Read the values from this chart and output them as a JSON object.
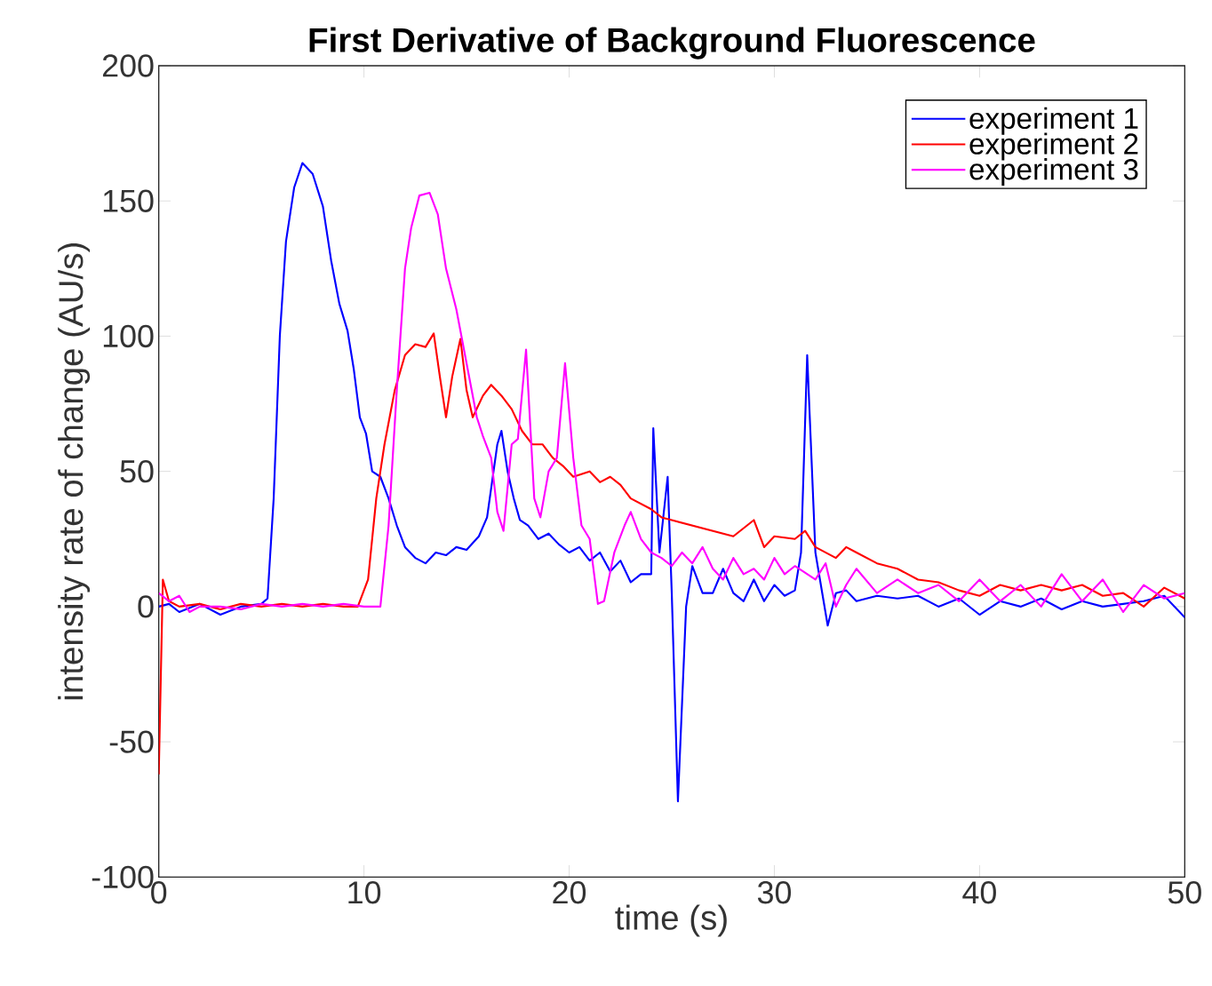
{
  "chart_data": {
    "type": "line",
    "title": "First Derivative of Background Fluorescence",
    "xlabel": "time (s)",
    "ylabel": "intensity rate of change (AU/s)",
    "xlim": [
      0,
      50
    ],
    "ylim": [
      -100,
      200
    ],
    "xticks": [
      0,
      10,
      20,
      30,
      40,
      50
    ],
    "yticks": [
      -100,
      -50,
      0,
      50,
      100,
      150,
      200
    ],
    "legend": "top right",
    "grid": false,
    "line_style": "solid",
    "marker": "none",
    "series": [
      {
        "name": "experiment 1",
        "color": "#0000ff",
        "x": [
          0,
          0.5,
          1,
          2,
          3,
          4,
          5,
          5.3,
          5.6,
          5.9,
          6.2,
          6.6,
          7,
          7.5,
          8,
          8.4,
          8.8,
          9.2,
          9.5,
          9.8,
          10.1,
          10.4,
          10.8,
          11.2,
          11.6,
          12,
          12.5,
          13,
          13.5,
          14,
          14.5,
          15,
          15.6,
          16,
          16.5,
          16.7,
          17,
          17.3,
          17.6,
          18,
          18.5,
          19,
          19.5,
          20,
          20.5,
          21,
          21.5,
          22,
          22.5,
          23,
          23.5,
          24,
          24.1,
          24.4,
          24.8,
          25,
          25.3,
          25.7,
          26,
          26.5,
          27,
          27.5,
          28,
          28.5,
          29,
          29.5,
          30,
          30.5,
          31,
          31.3,
          31.6,
          32,
          32.6,
          33,
          33.5,
          34,
          35,
          36,
          37,
          38,
          39,
          40,
          41,
          42,
          43,
          44,
          45,
          46,
          47,
          48,
          49,
          50
        ],
        "values": [
          0,
          1,
          -2,
          1,
          -3,
          0,
          1,
          3,
          40,
          100,
          135,
          155,
          164,
          160,
          148,
          128,
          112,
          102,
          88,
          70,
          64,
          50,
          48,
          40,
          30,
          22,
          18,
          16,
          20,
          19,
          22,
          21,
          26,
          33,
          60,
          65,
          50,
          40,
          32,
          30,
          25,
          27,
          23,
          20,
          22,
          17,
          20,
          13,
          17,
          9,
          12,
          12,
          66,
          20,
          48,
          5,
          -72,
          0,
          15,
          5,
          5,
          14,
          5,
          2,
          10,
          2,
          8,
          4,
          6,
          20,
          93,
          20,
          -7,
          5,
          6,
          2,
          4,
          3,
          4,
          0,
          3,
          -3,
          2,
          0,
          3,
          -1,
          2,
          0,
          1,
          2,
          4,
          -4
        ]
      },
      {
        "name": "experiment 2",
        "color": "#ff0000",
        "x": [
          0,
          0.2,
          0.5,
          1,
          2,
          3,
          4,
          5,
          6,
          7,
          8,
          9,
          9.7,
          10.2,
          10.6,
          11,
          11.5,
          12,
          12.5,
          13,
          13.4,
          13.7,
          14,
          14.3,
          14.7,
          15,
          15.3,
          15.8,
          16.2,
          16.7,
          17.2,
          17.7,
          18.2,
          18.7,
          19.2,
          19.7,
          20.2,
          21,
          21.5,
          22,
          22.5,
          23,
          24,
          24.5,
          25,
          26,
          27,
          28,
          29,
          29.5,
          30,
          31,
          31.5,
          32,
          33,
          33.5,
          34,
          35,
          36,
          37,
          38,
          39,
          40,
          41,
          42,
          43,
          44,
          45,
          46,
          47,
          48,
          49,
          50
        ],
        "values": [
          -62,
          10,
          2,
          0,
          1,
          -1,
          1,
          0,
          1,
          0,
          1,
          0,
          0,
          10,
          40,
          60,
          80,
          93,
          97,
          96,
          101,
          85,
          70,
          85,
          99,
          80,
          70,
          78,
          82,
          78,
          73,
          65,
          60,
          60,
          55,
          52,
          48,
          50,
          46,
          48,
          45,
          40,
          36,
          33,
          32,
          30,
          28,
          26,
          32,
          22,
          26,
          25,
          28,
          22,
          18,
          22,
          20,
          16,
          14,
          10,
          9,
          6,
          4,
          8,
          6,
          8,
          6,
          8,
          4,
          5,
          0,
          7,
          3
        ]
      },
      {
        "name": "experiment 3",
        "color": "#ff00ff",
        "x": [
          0,
          0.5,
          1,
          1.5,
          2,
          3,
          4,
          5,
          6,
          7,
          8,
          9,
          10,
          10.8,
          11.2,
          11.6,
          12,
          12.3,
          12.7,
          13.2,
          13.6,
          14,
          14.5,
          15,
          15.5,
          15.8,
          16.2,
          16.5,
          16.8,
          17.2,
          17.5,
          17.9,
          18.3,
          18.6,
          19,
          19.4,
          19.8,
          20.2,
          20.6,
          21,
          21.4,
          21.7,
          22.2,
          22.7,
          23,
          23.5,
          24,
          24.5,
          25,
          25.5,
          26,
          26.5,
          27,
          27.5,
          28,
          28.5,
          29,
          29.5,
          30,
          30.5,
          31,
          32,
          32.5,
          33,
          33.5,
          34,
          35,
          36,
          37,
          38,
          39,
          40,
          41,
          42,
          43,
          44,
          45,
          46,
          47,
          48,
          49,
          50
        ],
        "values": [
          5,
          2,
          4,
          -2,
          0,
          0,
          -1,
          1,
          0,
          1,
          0,
          1,
          0,
          0,
          30,
          80,
          125,
          140,
          152,
          153,
          145,
          125,
          110,
          90,
          70,
          63,
          55,
          35,
          28,
          60,
          62,
          95,
          40,
          33,
          50,
          55,
          90,
          55,
          30,
          25,
          1,
          2,
          20,
          30,
          35,
          25,
          20,
          18,
          15,
          20,
          16,
          22,
          14,
          10,
          18,
          12,
          14,
          10,
          18,
          12,
          15,
          10,
          16,
          0,
          8,
          14,
          5,
          10,
          5,
          8,
          2,
          10,
          2,
          8,
          0,
          12,
          2,
          10,
          -2,
          8,
          3,
          5
        ]
      }
    ]
  }
}
